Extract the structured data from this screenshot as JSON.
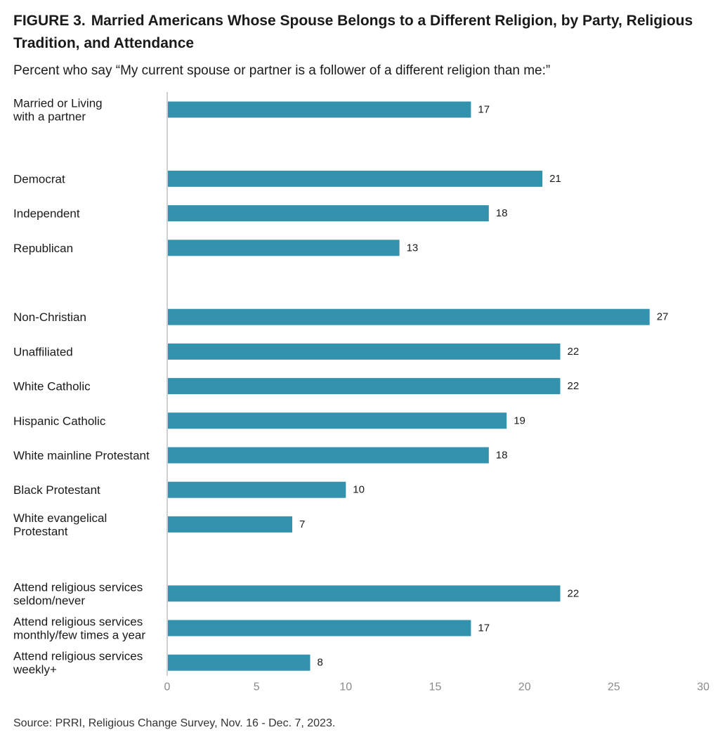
{
  "figure": {
    "number": "FIGURE 3.",
    "title": "Married Americans Whose Spouse Belongs to a Different Religion, by Party, Religious Tradition, and Attendance",
    "subtitle": "Percent who say “My current spouse or partner is a follower of a different religion than me:”",
    "source": "Source: PRRI, Religious Change Survey, Nov. 16 - Dec. 7, 2023."
  },
  "colors": {
    "bar": "#3392ae",
    "axis": "#d0d0d0"
  },
  "chart_data": {
    "type": "bar",
    "orientation": "horizontal",
    "xlim": [
      0,
      30
    ],
    "xticks": [
      0,
      5,
      10,
      15,
      20,
      25,
      30
    ],
    "grid": false,
    "groups": [
      {
        "categories": [
          {
            "label": [
              "Married or Living",
              "with a partner"
            ],
            "value": 17
          }
        ]
      },
      {
        "categories": [
          {
            "label": [
              "Democrat"
            ],
            "value": 21
          },
          {
            "label": [
              "Independent"
            ],
            "value": 18
          },
          {
            "label": [
              "Republican"
            ],
            "value": 13
          }
        ]
      },
      {
        "categories": [
          {
            "label": [
              "Non-Christian"
            ],
            "value": 27
          },
          {
            "label": [
              "Unaffiliated"
            ],
            "value": 22
          },
          {
            "label": [
              "White Catholic"
            ],
            "value": 22
          },
          {
            "label": [
              "Hispanic Catholic"
            ],
            "value": 19
          },
          {
            "label": [
              "White mainline Protestant"
            ],
            "value": 18
          },
          {
            "label": [
              "Black Protestant"
            ],
            "value": 10
          },
          {
            "label": [
              "White evangelical",
              "Protestant"
            ],
            "value": 7
          }
        ]
      },
      {
        "categories": [
          {
            "label": [
              "Attend religious services",
              "seldom/never"
            ],
            "value": 22
          },
          {
            "label": [
              "Attend religious services",
              "monthly/few times a year"
            ],
            "value": 17
          },
          {
            "label": [
              "Attend religious services",
              "weekly+"
            ],
            "value": 8
          }
        ]
      }
    ]
  }
}
